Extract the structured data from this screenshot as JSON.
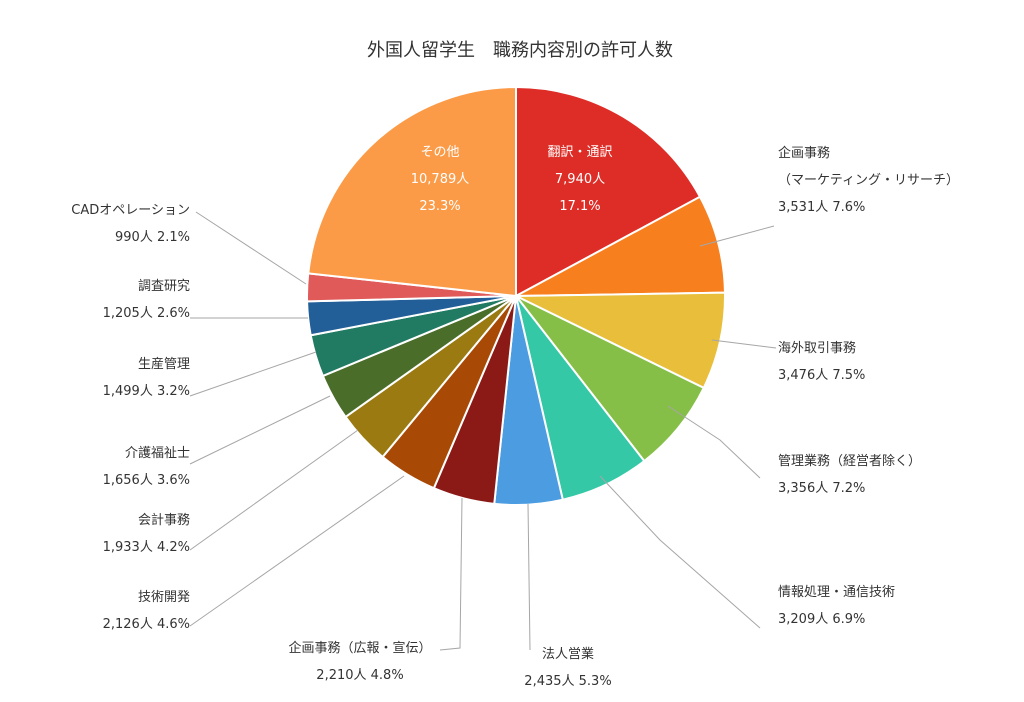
{
  "chart_data": {
    "type": "pie",
    "title": "外国人留学生　職務内容別の許可人数",
    "slices": [
      {
        "label": "翻訳・通訳",
        "value": 7940,
        "count_text": "7,940人",
        "percent_text": "17.1%",
        "color": "#de2d26"
      },
      {
        "label": "企画事務\n（マーケティング・リサーチ）",
        "value": 3531,
        "count_text": "3,531人",
        "percent_text": "7.6%",
        "color": "#f77f1e"
      },
      {
        "label": "海外取引事務",
        "value": 3476,
        "count_text": "3,476人",
        "percent_text": "7.5%",
        "color": "#e8be3a"
      },
      {
        "label": "管理業務（経営者除く）",
        "value": 3356,
        "count_text": "3,356人",
        "percent_text": "7.2%",
        "color": "#86bf47"
      },
      {
        "label": "情報処理・通信技術",
        "value": 3209,
        "count_text": "3,209人",
        "percent_text": "6.9%",
        "color": "#34c8a7"
      },
      {
        "label": "法人営業",
        "value": 2435,
        "count_text": "2,435人",
        "percent_text": "5.3%",
        "color": "#4b9ce0"
      },
      {
        "label": "企画事務（広報・宣伝）",
        "value": 2210,
        "count_text": "2,210人",
        "percent_text": "4.8%",
        "color": "#8b1a17"
      },
      {
        "label": "技術開発",
        "value": 2126,
        "count_text": "2,126人",
        "percent_text": "4.6%",
        "color": "#a84a06"
      },
      {
        "label": "会計事務",
        "value": 1933,
        "count_text": "1,933人",
        "percent_text": "4.2%",
        "color": "#9b7a12"
      },
      {
        "label": "介護福祉士",
        "value": 1656,
        "count_text": "1,656人",
        "percent_text": "3.6%",
        "color": "#4a6e2a"
      },
      {
        "label": "生産管理",
        "value": 1499,
        "count_text": "1,499人",
        "percent_text": "3.2%",
        "color": "#217a62"
      },
      {
        "label": "調査研究",
        "value": 1205,
        "count_text": "1,205人",
        "percent_text": "2.6%",
        "color": "#225f99"
      },
      {
        "label": "CADオペレーション",
        "value": 990,
        "count_text": "990人",
        "percent_text": "2.1%",
        "color": "#e05a5a"
      },
      {
        "label": "その他",
        "value": 10789,
        "count_text": "10,789人",
        "percent_text": "23.3%",
        "color": "#fb9b48"
      }
    ]
  }
}
